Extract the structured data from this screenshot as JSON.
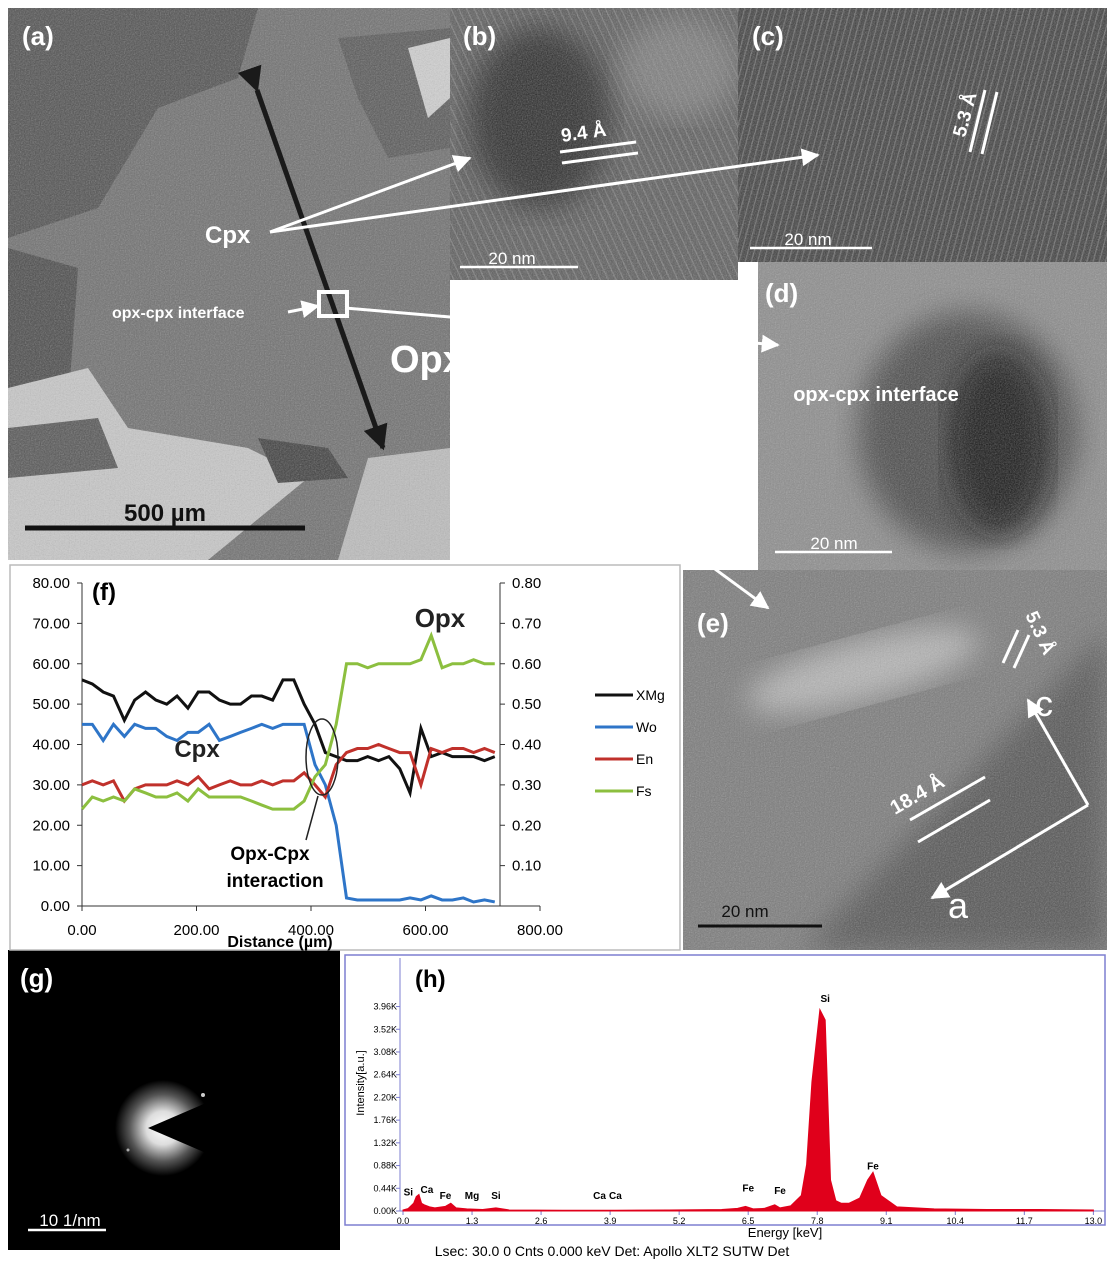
{
  "panel_a": {
    "label": "(a)",
    "cpx": "Cpx",
    "interface": "opx-cpx interface",
    "opx": "Opx",
    "scale_bar": "500 µm"
  },
  "panel_b": {
    "label": "(b)",
    "spacing": "9.4 Å",
    "scale_bar": "20 nm"
  },
  "panel_c": {
    "label": "(c)",
    "spacing": "5.3 Å",
    "scale_bar": "20 nm"
  },
  "panel_d": {
    "label": "(d)",
    "interface": "opx-cpx interface",
    "scale_bar": "20 nm"
  },
  "panel_e": {
    "label": "(e)",
    "spacing_c": "5.3 Å",
    "axis_c": "c",
    "spacing_a": "18.4 Å",
    "axis_a": "a",
    "scale_bar": "20 nm"
  },
  "panel_g": {
    "label": "(g)",
    "scale_bar": "10 1/nm"
  },
  "chart_data": [
    {
      "type": "line",
      "label": "(f)",
      "x_label": "Distance (µm)",
      "annotations": [
        "Opx",
        "Cpx",
        "Opx-Cpx",
        "interaction"
      ],
      "x": [
        0,
        18,
        37,
        55,
        74,
        92,
        111,
        129,
        148,
        166,
        185,
        203,
        222,
        240,
        259,
        277,
        296,
        314,
        333,
        351,
        370,
        388,
        407,
        425,
        444,
        462,
        481,
        499,
        518,
        536,
        555,
        573,
        592,
        610,
        629,
        647,
        666,
        684,
        703,
        721
      ],
      "series": [
        {
          "name": "XMg",
          "color": "#111111",
          "axis": "y2",
          "values": [
            0.56,
            0.55,
            0.53,
            0.52,
            0.46,
            0.51,
            0.53,
            0.51,
            0.5,
            0.52,
            0.49,
            0.53,
            0.53,
            0.51,
            0.5,
            0.5,
            0.52,
            0.52,
            0.51,
            0.56,
            0.56,
            0.5,
            0.45,
            0.38,
            0.37,
            0.36,
            0.36,
            0.37,
            0.36,
            0.37,
            0.34,
            0.28,
            0.44,
            0.37,
            0.38,
            0.37,
            0.37,
            0.37,
            0.36,
            0.37
          ]
        },
        {
          "name": "Wo",
          "color": "#2e75c8",
          "values": [
            45,
            45,
            41,
            45,
            42,
            45,
            44,
            44,
            42,
            41,
            43,
            43,
            45,
            41,
            42,
            43,
            44,
            45,
            44,
            45,
            45,
            45,
            35,
            30,
            20,
            2,
            1.5,
            1.5,
            1.5,
            1.5,
            1.5,
            2,
            1.5,
            2.5,
            1.5,
            1.5,
            2,
            1,
            1.5,
            1
          ]
        },
        {
          "name": "En",
          "color": "#c0312b",
          "values": [
            30,
            31,
            30,
            31,
            26,
            29,
            30,
            30,
            30,
            31,
            30,
            32,
            29,
            30,
            31,
            30,
            30,
            31,
            30,
            31,
            31,
            33,
            30,
            27,
            35,
            38,
            39,
            39,
            40,
            39,
            38,
            38,
            30,
            39,
            38,
            39,
            39,
            38,
            39,
            38
          ]
        },
        {
          "name": "Fs",
          "color": "#8cbf3f",
          "values": [
            24,
            27,
            26,
            27,
            26,
            29,
            28,
            27,
            27,
            28,
            26,
            29,
            27,
            27,
            27,
            27,
            26,
            25,
            24,
            24,
            24,
            26,
            32,
            35,
            45,
            60,
            60,
            59,
            60,
            60,
            60,
            60,
            61,
            67,
            59,
            60,
            60,
            61,
            60,
            60
          ]
        }
      ],
      "xlim": [
        0,
        800
      ],
      "xticks": [
        {
          "value": 0,
          "label": "0.00"
        },
        {
          "value": 200,
          "label": "200.00"
        },
        {
          "value": 400,
          "label": "400.00"
        },
        {
          "value": 600,
          "label": "600.00"
        },
        {
          "value": 800,
          "label": "800.00"
        }
      ],
      "ylim": [
        0,
        80
      ],
      "yticks": [
        {
          "value": 0,
          "label": "0.00"
        },
        {
          "value": 10,
          "label": "10.00"
        },
        {
          "value": 20,
          "label": "20.00"
        },
        {
          "value": 30,
          "label": "30.00"
        },
        {
          "value": 40,
          "label": "40.00"
        },
        {
          "value": 50,
          "label": "50.00"
        },
        {
          "value": 60,
          "label": "60.00"
        },
        {
          "value": 70,
          "label": "70.00"
        },
        {
          "value": 80,
          "label": "80.00"
        }
      ],
      "y2lim": [
        0,
        0.8
      ],
      "y2ticks": [
        {
          "value": 0.1,
          "label": "0.10"
        },
        {
          "value": 0.2,
          "label": "0.20"
        },
        {
          "value": 0.3,
          "label": "0.30"
        },
        {
          "value": 0.4,
          "label": "0.40"
        },
        {
          "value": 0.5,
          "label": "0.50"
        },
        {
          "value": 0.6,
          "label": "0.60"
        },
        {
          "value": 0.7,
          "label": "0.70"
        },
        {
          "value": 0.8,
          "label": "0.80"
        }
      ],
      "legend": "right"
    },
    {
      "type": "area",
      "label": "(h)",
      "x_label": "Energy [keV]",
      "y_label": "Intensity[a.u.]",
      "footer": "Lsec: 30.0 0 Cnts 0.000 keV Det: Apollo XLT2 SUTW Det",
      "color": "#e0001b",
      "x": [
        0,
        0.1,
        0.2,
        0.25,
        0.3,
        0.35,
        0.4,
        0.5,
        0.6,
        0.8,
        0.9,
        1.0,
        1.2,
        1.5,
        1.75,
        2,
        3,
        4,
        5,
        6,
        6.3,
        6.45,
        6.6,
        6.8,
        7.0,
        7.1,
        7.3,
        7.5,
        7.6,
        7.7,
        7.85,
        7.95,
        8.05,
        8.15,
        8.25,
        8.4,
        8.6,
        8.75,
        8.85,
        9.0,
        9.3,
        10,
        11,
        12,
        13
      ],
      "values": [
        20,
        50,
        150,
        280,
        320,
        150,
        120,
        80,
        60,
        90,
        150,
        60,
        40,
        30,
        60,
        20,
        15,
        15,
        20,
        30,
        50,
        90,
        40,
        50,
        120,
        60,
        100,
        300,
        900,
        2500,
        3900,
        3700,
        600,
        200,
        150,
        150,
        250,
        600,
        750,
        300,
        80,
        40,
        30,
        30,
        20
      ],
      "peak_labels": [
        {
          "text": "Si",
          "x": 0.1,
          "y": 300
        },
        {
          "text": "Ca",
          "x": 0.45,
          "y": 350
        },
        {
          "text": "Fe",
          "x": 0.8,
          "y": 230
        },
        {
          "text": "Mg",
          "x": 1.3,
          "y": 230
        },
        {
          "text": "Si",
          "x": 1.75,
          "y": 230
        },
        {
          "text": "Ca",
          "x": 3.7,
          "y": 230
        },
        {
          "text": "Ca",
          "x": 4.0,
          "y": 230
        },
        {
          "text": "Fe",
          "x": 6.5,
          "y": 380
        },
        {
          "text": "Fe",
          "x": 7.1,
          "y": 330
        },
        {
          "text": "Si",
          "x": 7.95,
          "y": 4050
        },
        {
          "text": "Fe",
          "x": 8.85,
          "y": 800
        }
      ],
      "xlim": [
        0,
        13.2
      ],
      "xticks": [
        {
          "value": 0,
          "label": "0.0"
        },
        1.3,
        2.6,
        3.9,
        5.2,
        6.5,
        7.8,
        9.1,
        10.4,
        11.7,
        {
          "value": 13,
          "label": "13.0"
        }
      ],
      "ylim": [
        0,
        4900
      ],
      "yticks": [
        {
          "value": 0,
          "label": "0.00K"
        },
        {
          "value": 440,
          "label": "0.44K"
        },
        {
          "value": 880,
          "label": "0.88K"
        },
        {
          "value": 1320,
          "label": "1.32K"
        },
        {
          "value": 1760,
          "label": "1.76K"
        },
        {
          "value": 2200,
          "label": "2.20K"
        },
        {
          "value": 2640,
          "label": "2.64K"
        },
        {
          "value": 3080,
          "label": "3.08K"
        },
        {
          "value": 3520,
          "label": "3.52K"
        },
        {
          "value": 3960,
          "label": "3.96K"
        }
      ]
    }
  ]
}
